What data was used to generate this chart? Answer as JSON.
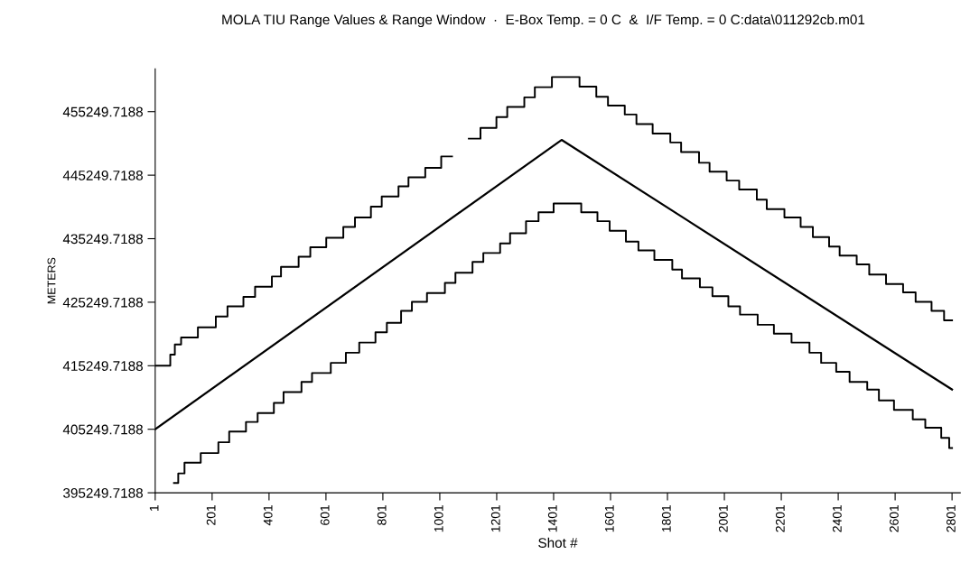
{
  "chart_data": {
    "type": "line",
    "title": "MOLA TIU Range Values & Range Window  ·  E-Box Temp. = 0 C  &  I/F Temp. = 0 C:data\\011292cb.m01",
    "xlabel": "Shot #",
    "ylabel": "METERS",
    "xlim": [
      1,
      2830
    ],
    "ylim": [
      395249.7188,
      462000
    ],
    "xticks": [
      1,
      201,
      401,
      601,
      801,
      1001,
      1201,
      1401,
      1601,
      1801,
      2001,
      2201,
      2401,
      2601,
      2801
    ],
    "yticks": [
      395249.7188,
      405249.7188,
      415249.7188,
      425249.7188,
      435249.7188,
      445249.7188,
      455249.7188
    ],
    "series": [
      {
        "type": "step",
        "color": "#000000",
        "x": [
          1,
          54,
          70,
          92,
          151,
          214,
          255,
          311,
          352,
          411,
          443,
          505,
          546,
          602,
          662,
          703,
          759,
          797,
          856,
          891,
          950,
          1006,
          1044,
          1103,
          1144,
          1200,
          1238,
          1298,
          1335,
          1395,
          1492,
          1551,
          1592,
          1651,
          1692,
          1749,
          1811,
          1849,
          1912,
          1949,
          2009,
          2053,
          2115,
          2150,
          2212,
          2269,
          2312,
          2369,
          2406,
          2466,
          2510,
          2569,
          2629,
          2673,
          2729,
          2773,
          2801
        ],
        "values": [
          415250,
          417000,
          418600,
          419700,
          421300,
          423000,
          424600,
          426100,
          427700,
          429300,
          430800,
          432400,
          433900,
          435400,
          437100,
          438600,
          440300,
          441900,
          443500,
          444900,
          446400,
          448200,
          null,
          451000,
          452700,
          454400,
          456000,
          457500,
          459100,
          460700,
          459200,
          457600,
          456200,
          454800,
          453300,
          451800,
          450400,
          448900,
          447200,
          445800,
          444400,
          443000,
          441400,
          439900,
          438600,
          437100,
          435500,
          434000,
          432600,
          431200,
          429600,
          428100,
          426800,
          425300,
          423900,
          422400,
          422400
        ]
      },
      {
        "color": "#000000",
        "x": [
          1,
          1429,
          2801
        ],
        "values": [
          405250,
          450800,
          411500
        ]
      },
      {
        "type": "step",
        "color": "#000000",
        "x": [
          67,
          82,
          104,
          161,
          223,
          261,
          320,
          361,
          418,
          452,
          515,
          552,
          618,
          671,
          718,
          775,
          815,
          865,
          903,
          956,
          1019,
          1056,
          1116,
          1154,
          1213,
          1248,
          1304,
          1348,
          1401,
          1498,
          1555,
          1598,
          1655,
          1699,
          1755,
          1818,
          1852,
          1915,
          1959,
          2015,
          2056,
          2118,
          2175,
          2237,
          2300,
          2341,
          2394,
          2441,
          2503,
          2544,
          2597,
          2663,
          2707,
          2763,
          2791,
          2801
        ],
        "values": [
          396800,
          398300,
          400000,
          401500,
          403200,
          404900,
          406400,
          407800,
          409400,
          411100,
          412700,
          414100,
          415700,
          417300,
          418900,
          420500,
          422000,
          423900,
          425300,
          426700,
          428300,
          429900,
          431600,
          433000,
          434500,
          436100,
          438000,
          439400,
          440800,
          439400,
          438000,
          436500,
          434800,
          433400,
          431900,
          430400,
          429000,
          427600,
          426200,
          424600,
          423300,
          421700,
          420300,
          418900,
          417300,
          415700,
          414300,
          412700,
          411500,
          409800,
          408300,
          406800,
          405500,
          403900,
          402300,
          402300
        ]
      }
    ]
  }
}
